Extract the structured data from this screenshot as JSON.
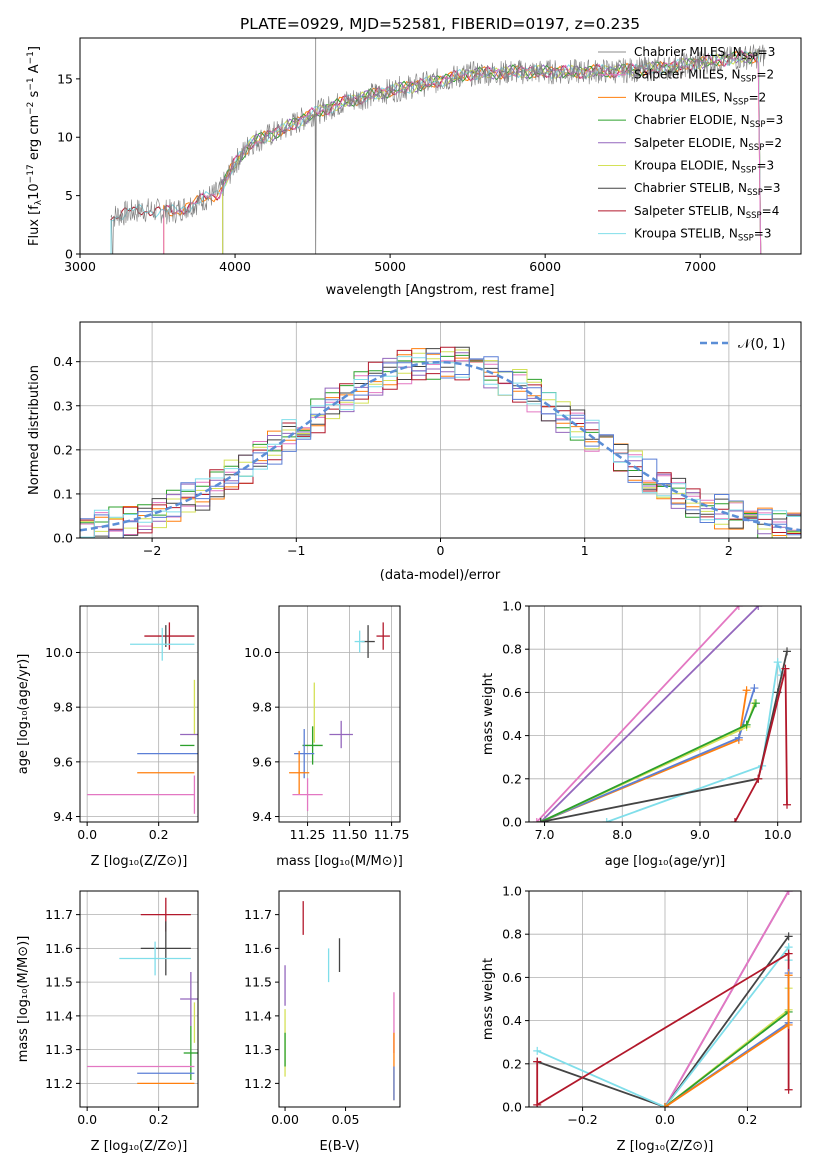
{
  "page_title": "PLATE=0929, MJD=52581, FIBERID=0197, z=0.235",
  "colors": {
    "Chabrier MILES": "#8c8c8c",
    "Salpeter MILES": "#e377c2",
    "Kroupa MILES": "#ff7f0e",
    "Chabrier ELODIE": "#2ca02c",
    "Salpeter ELODIE": "#9467bd",
    "Kroupa ELODIE": "#d4e157",
    "Chabrier STELIB": "#444444",
    "Salpeter STELIB": "#b2182b",
    "Kroupa STELIB": "#80deea",
    "Blue": "#5b7fd6"
  },
  "chart_data": [
    {
      "id": "spectrum",
      "type": "line",
      "title": "PLATE=0929, MJD=52581, FIBERID=0197, z=0.235",
      "xlabel": "wavelength [Angstrom, rest frame]",
      "ylabel": "Flux [f_λ 10^-17 erg cm^-2 s^-1 A^-1]",
      "xlim": [
        3000,
        7650
      ],
      "ylim": [
        0,
        18.5
      ],
      "xticks": [
        3000,
        4000,
        5000,
        6000,
        7000
      ],
      "yticks": [
        0,
        5,
        10,
        15
      ],
      "grid": false,
      "legend_position": "top-right",
      "legend": [
        {
          "name": "Chabrier MILES",
          "label": "Chabrier MILES, N",
          "n": "=3"
        },
        {
          "name": "Salpeter MILES",
          "label": "Salpeter MILES, N",
          "n": "=2"
        },
        {
          "name": "Kroupa MILES",
          "label": "Kroupa MILES, N",
          "n": "=2"
        },
        {
          "name": "Chabrier ELODIE",
          "label": "Chabrier ELODIE, N",
          "n": "=3"
        },
        {
          "name": "Salpeter ELODIE",
          "label": "Salpeter ELODIE, N",
          "n": "=2"
        },
        {
          "name": "Kroupa ELODIE",
          "label": "Kroupa ELODIE, N",
          "n": "=3"
        },
        {
          "name": "Chabrier STELIB",
          "label": "Chabrier STELIB, N",
          "n": "=3"
        },
        {
          "name": "Salpeter STELIB",
          "label": "Salpeter STELIB, N",
          "n": "=4"
        },
        {
          "name": "Kroupa STELIB",
          "label": "Kroupa STELIB, N",
          "n": "=3"
        }
      ],
      "legend_subscript": "SSP",
      "continuum": [
        [
          3200,
          3.2
        ],
        [
          3400,
          3.8
        ],
        [
          3600,
          3.6
        ],
        [
          3750,
          4.4
        ],
        [
          3900,
          5.3
        ],
        [
          4000,
          7.8
        ],
        [
          4100,
          9.5
        ],
        [
          4300,
          10.6
        ],
        [
          4500,
          12.0
        ],
        [
          4700,
          13.0
        ],
        [
          5000,
          14.0
        ],
        [
          5200,
          14.5
        ],
        [
          5500,
          15.4
        ],
        [
          5800,
          15.6
        ],
        [
          6000,
          15.6
        ],
        [
          6200,
          15.6
        ],
        [
          6500,
          15.7
        ],
        [
          6800,
          16.0
        ],
        [
          7100,
          16.6
        ],
        [
          7400,
          17.0
        ]
      ],
      "series_starts": {
        "Chabrier MILES": 3540,
        "Salpeter MILES": 3540,
        "Kroupa MILES": 3540,
        "Chabrier ELODIE": 3920,
        "Salpeter ELODIE": 3920,
        "Kroupa ELODIE": 3920,
        "Chabrier STELIB": 3200,
        "Salpeter STELIB": 3200,
        "Kroupa STELIB": 3200
      }
    },
    {
      "id": "residuals",
      "type": "histogram",
      "xlabel": "(data-model)/error",
      "ylabel": "Normed distribution",
      "xlim": [
        -2.5,
        2.5
      ],
      "ylim": [
        0,
        0.49
      ],
      "xticks": [
        -2,
        -1,
        0,
        1,
        2
      ],
      "yticks": [
        0,
        0.1,
        0.2,
        0.3,
        0.4
      ],
      "grid": true,
      "legend_position": "top-right",
      "legend_label": "𝒩(0, 1)",
      "bin_width": 0.1
    },
    {
      "id": "age_vs_Z",
      "type": "scatter",
      "xlabel": "Z [log10(Z/Z⊙)]",
      "ylabel": "age [log10(age/yr)]",
      "xlim": [
        -0.02,
        0.31
      ],
      "ylim": [
        9.38,
        10.17
      ],
      "xticks": [
        0,
        0.2
      ],
      "yticks": [
        9.4,
        9.6,
        9.8,
        10.0
      ],
      "grid": true,
      "points": [
        {
          "name": "Salpeter STELIB",
          "x": 0.23,
          "y": 10.06,
          "xerr": 0.07,
          "yerr": 0.05
        },
        {
          "name": "Chabrier STELIB",
          "x": 0.22,
          "y": 10.06,
          "xerr": 0.0,
          "yerr": 0.04
        },
        {
          "name": "Kroupa STELIB",
          "x": 0.21,
          "y": 10.03,
          "xerr": 0.09,
          "yerr": 0.06
        },
        {
          "name": "Kroupa ELODIE",
          "x": 0.3,
          "y": 9.8,
          "xerr": 0.0,
          "yerr": 0.1
        },
        {
          "name": "Salpeter ELODIE",
          "x": 0.29,
          "y": 9.7,
          "xerr": 0.03,
          "yerr": 0.0
        },
        {
          "name": "Chabrier ELODIE",
          "x": 0.28,
          "y": 9.66,
          "xerr": 0.02,
          "yerr": 0.0
        },
        {
          "name": "Blue",
          "x": 0.23,
          "y": 9.63,
          "xerr": 0.09,
          "yerr": 0.0
        },
        {
          "name": "Kroupa MILES",
          "x": 0.22,
          "y": 9.56,
          "xerr": 0.08,
          "yerr": 0.0
        },
        {
          "name": "Salpeter MILES",
          "x": 0.15,
          "y": 9.48,
          "xerr": 0.15,
          "yerr": 0.0
        },
        {
          "name": "Salpeter MILES",
          "x": 0.3,
          "y": 9.48,
          "xerr": 0.0,
          "yerr": 0.07
        }
      ]
    },
    {
      "id": "age_vs_mass",
      "type": "scatter",
      "xlabel": "mass [log10(M/M⊙)]",
      "ylabel": "",
      "xlim": [
        11.08,
        11.8
      ],
      "ylim": [
        9.38,
        10.17
      ],
      "xticks": [
        11.25,
        11.5,
        11.75
      ],
      "yticks": [
        9.4,
        9.6,
        9.8,
        10.0
      ],
      "grid": true,
      "points": [
        {
          "name": "Salpeter STELIB",
          "x": 11.7,
          "y": 10.06,
          "xerr": 0.04,
          "yerr": 0.05
        },
        {
          "name": "Chabrier STELIB",
          "x": 11.61,
          "y": 10.04,
          "xerr": 0.04,
          "yerr": 0.06
        },
        {
          "name": "Kroupa STELIB",
          "x": 11.56,
          "y": 10.04,
          "xerr": 0.03,
          "yerr": 0.04
        },
        {
          "name": "Kroupa ELODIE",
          "x": 11.29,
          "y": 9.78,
          "xerr": 0.0,
          "yerr": 0.11
        },
        {
          "name": "Salpeter ELODIE",
          "x": 11.45,
          "y": 9.7,
          "xerr": 0.07,
          "yerr": 0.05
        },
        {
          "name": "Chabrier ELODIE",
          "x": 11.28,
          "y": 9.66,
          "xerr": 0.06,
          "yerr": 0.07
        },
        {
          "name": "Blue",
          "x": 11.23,
          "y": 9.63,
          "xerr": 0.06,
          "yerr": 0.09
        },
        {
          "name": "Kroupa MILES",
          "x": 11.2,
          "y": 9.56,
          "xerr": 0.06,
          "yerr": 0.08
        },
        {
          "name": "Salpeter MILES",
          "x": 11.25,
          "y": 9.48,
          "xerr": 0.09,
          "yerr": 0.06
        }
      ]
    },
    {
      "id": "weight_vs_age",
      "type": "line",
      "xlabel": "age [log10(age/yr)]",
      "ylabel": "mass weight",
      "xlim": [
        6.8,
        10.3
      ],
      "ylim": [
        0,
        1.0
      ],
      "xticks": [
        7,
        8,
        9,
        10
      ],
      "yticks": [
        0.0,
        0.2,
        0.4,
        0.6,
        0.8,
        1.0
      ],
      "grid": true,
      "series": [
        {
          "name": "Salpeter MILES",
          "x": [
            6.9,
            9.5
          ],
          "y": [
            0.0,
            1.0
          ]
        },
        {
          "name": "Salpeter ELODIE",
          "x": [
            6.95,
            9.75
          ],
          "y": [
            0.0,
            1.0
          ]
        },
        {
          "name": "Kroupa MILES",
          "x": [
            6.95,
            9.5,
            9.6
          ],
          "y": [
            0.0,
            0.38,
            0.61
          ]
        },
        {
          "name": "Blue",
          "x": [
            6.95,
            9.5,
            9.7
          ],
          "y": [
            0.0,
            0.39,
            0.62
          ]
        },
        {
          "name": "Kroupa ELODIE",
          "x": [
            6.95,
            9.6,
            9.7
          ],
          "y": [
            0.0,
            0.44,
            0.55
          ]
        },
        {
          "name": "Chabrier ELODIE",
          "x": [
            6.95,
            9.6,
            9.72
          ],
          "y": [
            0.0,
            0.45,
            0.55
          ]
        },
        {
          "name": "Kroupa STELIB",
          "x": [
            7.8,
            9.8,
            10.0,
            10.05
          ],
          "y": [
            0.0,
            0.26,
            0.74,
            0.68
          ]
        },
        {
          "name": "Chabrier STELIB",
          "x": [
            6.95,
            9.75,
            10.0,
            10.12
          ],
          "y": [
            0.0,
            0.2,
            0.6,
            0.79
          ]
        },
        {
          "name": "Salpeter STELIB",
          "x": [
            9.45,
            9.75,
            10.1,
            10.12
          ],
          "y": [
            0.0,
            0.2,
            0.71,
            0.08
          ]
        }
      ]
    },
    {
      "id": "mass_vs_Z",
      "type": "scatter",
      "xlabel": "Z [log10(Z/Z⊙)]",
      "ylabel": "mass [log10(M/M⊙)]",
      "xlim": [
        -0.02,
        0.31
      ],
      "ylim": [
        11.13,
        11.77
      ],
      "xticks": [
        0,
        0.2
      ],
      "yticks": [
        11.2,
        11.3,
        11.4,
        11.5,
        11.6,
        11.7
      ],
      "grid": true,
      "points": [
        {
          "name": "Salpeter STELIB",
          "x": 0.22,
          "y": 11.7,
          "xerr": 0.07,
          "yerr": 0.05
        },
        {
          "name": "Chabrier STELIB",
          "x": 0.22,
          "y": 11.6,
          "xerr": 0.07,
          "yerr": 0.08
        },
        {
          "name": "Kroupa STELIB",
          "x": 0.19,
          "y": 11.57,
          "xerr": 0.1,
          "yerr": 0.05
        },
        {
          "name": "Salpeter ELODIE",
          "x": 0.29,
          "y": 11.45,
          "xerr": 0.03,
          "yerr": 0.08
        },
        {
          "name": "Kroupa ELODIE",
          "x": 0.3,
          "y": 11.38,
          "xerr": 0.0,
          "yerr": 0.06
        },
        {
          "name": "Chabrier ELODIE",
          "x": 0.29,
          "y": 11.29,
          "xerr": 0.02,
          "yerr": 0.08
        },
        {
          "name": "Salpeter MILES",
          "x": 0.15,
          "y": 11.25,
          "xerr": 0.15,
          "yerr": 0.0
        },
        {
          "name": "Blue",
          "x": 0.22,
          "y": 11.23,
          "xerr": 0.08,
          "yerr": 0.0
        },
        {
          "name": "Kroupa MILES",
          "x": 0.22,
          "y": 11.2,
          "xerr": 0.08,
          "yerr": 0.0
        }
      ]
    },
    {
      "id": "mass_vs_ebv",
      "type": "scatter",
      "xlabel": "E(B-V)",
      "ylabel": "",
      "xlim": [
        -0.005,
        0.095
      ],
      "ylim": [
        11.13,
        11.77
      ],
      "xticks": [
        0.0,
        0.05
      ],
      "yticks": [
        11.2,
        11.3,
        11.4,
        11.5,
        11.6,
        11.7
      ],
      "grid": false,
      "points": [
        {
          "name": "Salpeter STELIB",
          "x": 0.015,
          "y": 11.69,
          "xerr": 0.0,
          "yerr": 0.05
        },
        {
          "name": "Chabrier STELIB",
          "x": 0.045,
          "y": 11.58,
          "xerr": 0.0,
          "yerr": 0.05
        },
        {
          "name": "Kroupa STELIB",
          "x": 0.036,
          "y": 11.55,
          "xerr": 0.0,
          "yerr": 0.05
        },
        {
          "name": "Salpeter ELODIE",
          "x": 0.0,
          "y": 11.49,
          "xerr": 0.0,
          "yerr": 0.06
        },
        {
          "name": "Kroupa ELODIE",
          "x": 0.0,
          "y": 11.32,
          "xerr": 0.0,
          "yerr": 0.1
        },
        {
          "name": "Chabrier ELODIE",
          "x": 0.0,
          "y": 11.3,
          "xerr": 0.0,
          "yerr": 0.05
        },
        {
          "name": "Salpeter MILES",
          "x": 0.09,
          "y": 11.38,
          "xerr": 0.0,
          "yerr": 0.09
        },
        {
          "name": "Kroupa MILES",
          "x": 0.09,
          "y": 11.25,
          "xerr": 0.0,
          "yerr": 0.1
        },
        {
          "name": "Blue",
          "x": 0.09,
          "y": 11.2,
          "xerr": 0.0,
          "yerr": 0.05
        }
      ]
    },
    {
      "id": "weight_vs_Z",
      "type": "line",
      "xlabel": "Z [log10(Z/Z⊙)]",
      "ylabel": "mass weight",
      "xlim": [
        -0.33,
        0.33
      ],
      "ylim": [
        0,
        1.0
      ],
      "xticks": [
        -0.2,
        0.0,
        0.2
      ],
      "yticks": [
        0.0,
        0.2,
        0.4,
        0.6,
        0.8,
        1.0
      ],
      "grid": true,
      "series": [
        {
          "name": "Salpeter ELODIE",
          "x": [
            0.0,
            0.3
          ],
          "y": [
            0.0,
            1.0
          ]
        },
        {
          "name": "Salpeter MILES",
          "x": [
            0.0,
            0.3
          ],
          "y": [
            0.0,
            1.0
          ]
        },
        {
          "name": "Chabrier STELIB",
          "x": [
            -0.31,
            0.0,
            0.3
          ],
          "y": [
            0.21,
            0.0,
            0.79
          ]
        },
        {
          "name": "Kroupa STELIB",
          "x": [
            -0.31,
            0.0,
            0.3,
            0.3
          ],
          "y": [
            0.26,
            0.0,
            0.74,
            0.68
          ]
        },
        {
          "name": "Salpeter STELIB",
          "x": [
            -0.31,
            -0.31,
            0.3,
            0.3
          ],
          "y": [
            0.21,
            0.01,
            0.71,
            0.08
          ]
        },
        {
          "name": "Kroupa ELODIE",
          "x": [
            0.0,
            0.3,
            0.3
          ],
          "y": [
            0.0,
            0.45,
            0.55
          ]
        },
        {
          "name": "Chabrier ELODIE",
          "x": [
            0.0,
            0.3
          ],
          "y": [
            0.0,
            0.44
          ]
        },
        {
          "name": "Blue",
          "x": [
            0.0,
            0.3,
            0.3
          ],
          "y": [
            0.0,
            0.39,
            0.62
          ]
        },
        {
          "name": "Kroupa MILES",
          "x": [
            0.0,
            0.3,
            0.3
          ],
          "y": [
            0.0,
            0.38,
            0.61
          ]
        }
      ]
    }
  ]
}
